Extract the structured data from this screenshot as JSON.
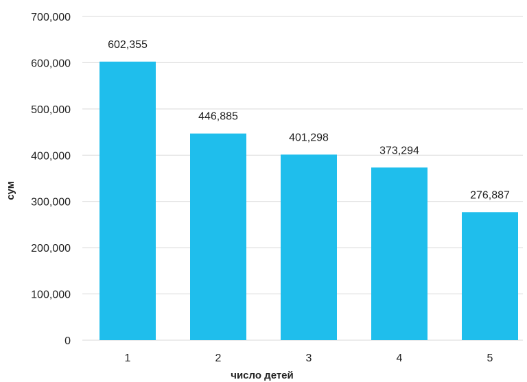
{
  "chart_data": {
    "type": "bar",
    "categories": [
      "1",
      "2",
      "3",
      "4",
      "5"
    ],
    "values": [
      602355,
      446885,
      401298,
      373294,
      276887
    ],
    "data_labels": [
      "602,355",
      "446,885",
      "401,298",
      "373,294",
      "276,887"
    ],
    "xlabel": "число детей",
    "ylabel": "сум",
    "ylim": [
      0,
      700000
    ],
    "yticks": [
      0,
      100000,
      200000,
      300000,
      400000,
      500000,
      600000,
      700000
    ],
    "ytick_labels": [
      "0",
      "100,000",
      "200,000",
      "300,000",
      "400,000",
      "500,000",
      "600,000",
      "700,000"
    ],
    "grid": true,
    "legend": "none",
    "bar_color": "#1fbeec"
  }
}
